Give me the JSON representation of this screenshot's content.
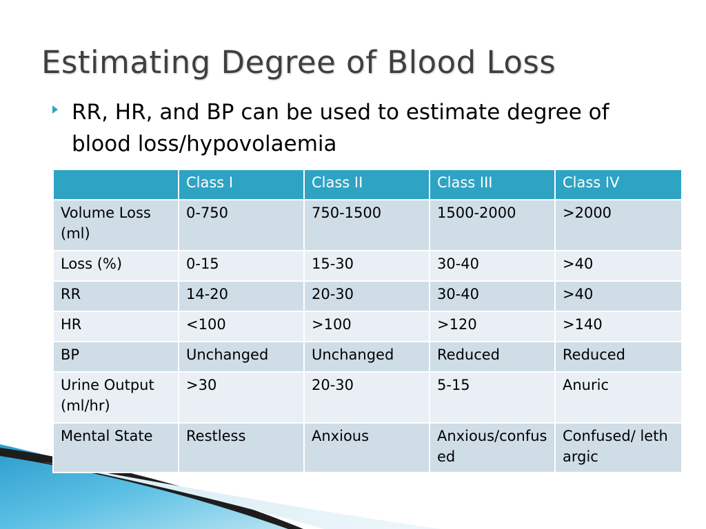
{
  "slide": {
    "title": "Estimating Degree of Blood Loss",
    "bullet": "RR, HR, and BP can be used to estimate degree of blood loss/hypovolaemia"
  },
  "table": {
    "headers": [
      "",
      "Class I",
      "Class II",
      "Class III",
      "Class IV"
    ],
    "rows": [
      [
        "Volume Loss (ml)",
        "0-750",
        "750-1500",
        "1500-2000",
        ">2000"
      ],
      [
        "Loss (%)",
        "0-15",
        "15-30",
        "30-40",
        ">40"
      ],
      [
        "RR",
        "14-20",
        "20-30",
        "30-40",
        ">40"
      ],
      [
        "HR",
        "<100",
        ">100",
        ">120",
        ">140"
      ],
      [
        "BP",
        "Unchanged",
        "Unchanged",
        "Reduced",
        "Reduced"
      ],
      [
        "Urine Output (ml/hr)",
        ">30",
        "20-30",
        "5-15",
        "Anuric"
      ],
      [
        "Mental State",
        "Restless",
        "Anxious",
        "Anxious/confused",
        "Confused/ lethargic"
      ]
    ]
  },
  "colors": {
    "accent": "#2ea3c4",
    "row_odd": "#cfdde7",
    "row_even": "#e9eff4",
    "title": "#3f3f3f"
  },
  "icons": {
    "bullet": "triangle-bullet-icon"
  }
}
